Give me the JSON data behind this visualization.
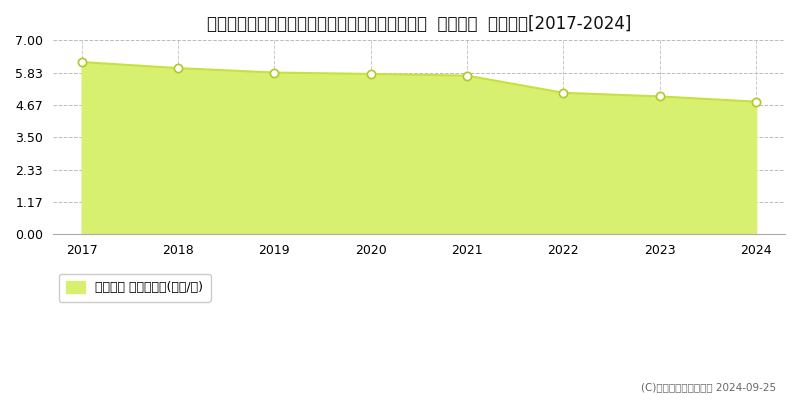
{
  "title": "長野県上水内郡飯綱町大字牟礼字居村２６９８番  基準地価  地価推移[2017-2024]",
  "years": [
    2017,
    2018,
    2019,
    2020,
    2021,
    2022,
    2023,
    2024
  ],
  "values": [
    6.21,
    5.99,
    5.83,
    5.78,
    5.72,
    5.1,
    4.97,
    4.78
  ],
  "yticks": [
    0,
    1.17,
    2.33,
    3.5,
    4.67,
    5.83,
    7
  ],
  "ylim": [
    0,
    7
  ],
  "line_color": "#c8e040",
  "fill_color": "#d8f070",
  "marker_facecolor": "#ffffff",
  "marker_edgecolor": "#b0c828",
  "grid_color": "#bbbbbb",
  "background_color": "#ffffff",
  "legend_label": "基準地価 平均坪単価(万円/坪)",
  "copyright_text": "(C)土地価格ドットコム 2024-09-25",
  "title_fontsize": 12,
  "tick_fontsize": 9,
  "legend_fontsize": 9
}
